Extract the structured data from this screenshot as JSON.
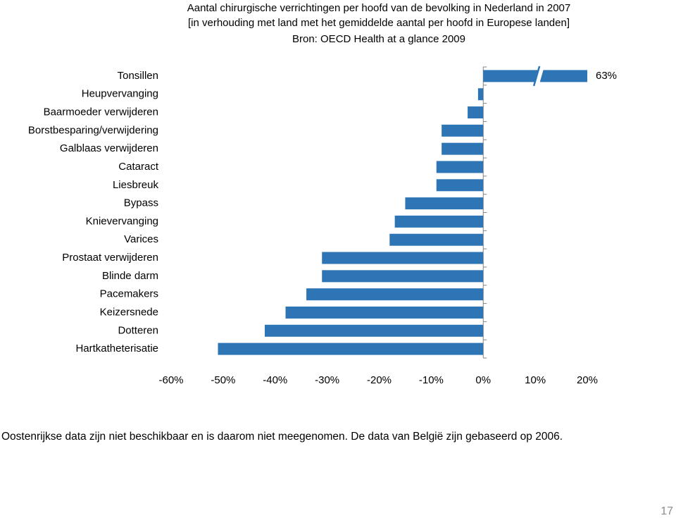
{
  "chart_data": {
    "type": "barh",
    "title": [
      "Aantal chirurgische verrichtingen per hoofd van de bevolking in Nederland in 2007",
      "[in verhouding met land met het gemiddelde aantal per hoofd in Europese landen]",
      "Bron: OECD Health at a glance 2009"
    ],
    "categories": [
      "Tonsillen",
      "Heupvervanging",
      "Baarmoeder verwijderen",
      "Borstbesparing/verwijdering",
      "Galblaas verwijderen",
      "Cataract",
      "Liesbreuk",
      "Bypass",
      "Knievervanging",
      "Varices",
      "Prostaat verwijderen",
      "Blinde darm",
      "Pacemakers",
      "Keizersnede",
      "Dotteren",
      "Hartkatheterisatie"
    ],
    "values": [
      63,
      -1,
      -3,
      -8,
      -8,
      -9,
      -9,
      -15,
      -17,
      -18,
      -31,
      -31,
      -34,
      -38,
      -42,
      -51
    ],
    "value_labels": [
      "63%",
      null,
      null,
      null,
      null,
      null,
      null,
      null,
      null,
      null,
      null,
      null,
      null,
      null,
      null,
      null
    ],
    "color": "#2e75b6",
    "broken_axis": true,
    "xlim": [
      -60,
      20
    ],
    "xticks": [
      {
        "value": -60,
        "label": "-60%"
      },
      {
        "value": -50,
        "label": "-50%"
      },
      {
        "value": -40,
        "label": "-40%"
      },
      {
        "value": -30,
        "label": "-30%"
      },
      {
        "value": -20,
        "label": "-20%"
      },
      {
        "value": -10,
        "label": "-10%"
      },
      {
        "value": 0,
        "label": "0%"
      },
      {
        "value": 10,
        "label": "10%"
      },
      {
        "value": 20,
        "label": "20%"
      }
    ],
    "footnote": "Oostenrijkse data zijn niet beschikbaar en is daarom niet meegenomen. De data van België zijn gebaseerd op 2006.",
    "page_number": "17"
  }
}
